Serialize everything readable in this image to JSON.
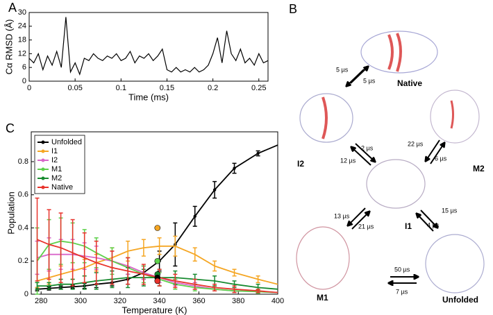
{
  "panel_labels": [
    "A",
    "B",
    "C"
  ],
  "chart_data": [
    {
      "type": "line",
      "xlabel": "Time (ms)",
      "ylabel": "Cα RMSD (Å)",
      "color": "#000000",
      "x": [
        0,
        0.005,
        0.01,
        0.015,
        0.02,
        0.025,
        0.03,
        0.035,
        0.04,
        0.045,
        0.05,
        0.055,
        0.06,
        0.065,
        0.07,
        0.075,
        0.08,
        0.085,
        0.09,
        0.095,
        0.1,
        0.105,
        0.11,
        0.115,
        0.12,
        0.125,
        0.13,
        0.135,
        0.14,
        0.145,
        0.15,
        0.155,
        0.16,
        0.165,
        0.17,
        0.175,
        0.18,
        0.185,
        0.19,
        0.195,
        0.2,
        0.205,
        0.21,
        0.215,
        0.22,
        0.225,
        0.23,
        0.235,
        0.24,
        0.245,
        0.25,
        0.255,
        0.26
      ],
      "values": [
        10,
        8,
        12,
        5,
        11,
        7,
        13,
        6,
        28,
        4,
        8,
        3,
        10,
        9,
        12,
        10,
        9,
        11,
        10,
        12,
        9,
        10,
        13,
        8,
        11,
        10,
        12,
        9,
        11,
        14,
        5,
        4,
        6,
        4,
        5,
        4,
        6,
        4,
        5,
        7,
        12,
        19,
        8,
        22,
        12,
        9,
        14,
        8,
        10,
        7,
        12,
        8,
        9
      ],
      "xlim": [
        0,
        0.26
      ],
      "xticks": [
        0,
        0.05,
        0.1,
        0.15,
        0.2,
        0.25
      ],
      "ylim": [
        0,
        30
      ],
      "yticks": [
        0,
        6,
        12,
        18,
        24,
        30
      ]
    },
    {
      "type": "errorline",
      "xlabel": "Temperature (K)",
      "ylabel": "Population",
      "x": [
        278,
        284,
        290,
        296,
        302,
        308,
        316,
        324,
        332,
        340,
        348,
        358,
        368,
        378,
        390,
        400
      ],
      "xlim": [
        275,
        400
      ],
      "xticks": [
        280,
        300,
        320,
        340,
        360,
        380,
        400
      ],
      "ylim": [
        0,
        0.98
      ],
      "yticks": [
        0,
        0.2,
        0.4,
        0.6,
        0.8
      ],
      "legend": "upper left",
      "series": [
        {
          "name": "Unfolded",
          "color": "#000000",
          "values": [
            0.03,
            0.035,
            0.04,
            0.045,
            0.05,
            0.06,
            0.07,
            0.09,
            0.13,
            0.2,
            0.3,
            0.47,
            0.63,
            0.76,
            0.85,
            0.9
          ],
          "errors": [
            0.01,
            0.01,
            0.01,
            0.01,
            0.015,
            0.02,
            0.02,
            0.03,
            0.04,
            0.06,
            0.13,
            0.06,
            0.05,
            0.03,
            0.015,
            null
          ]
        },
        {
          "name": "I1",
          "color": "#f5a623",
          "values": [
            0.08,
            0.1,
            0.12,
            0.14,
            0.16,
            0.19,
            0.22,
            0.26,
            0.28,
            0.29,
            0.29,
            0.24,
            0.17,
            0.13,
            0.09,
            0.06
          ],
          "errors": [
            0.04,
            0.04,
            0.05,
            0.05,
            0.05,
            0.05,
            0.06,
            0.06,
            0.05,
            0.05,
            0.06,
            0.04,
            0.03,
            0.02,
            0.02,
            null
          ]
        },
        {
          "name": "I2",
          "color": "#d966c9",
          "values": [
            0.22,
            0.24,
            0.24,
            0.24,
            0.23,
            0.22,
            0.2,
            0.17,
            0.13,
            0.1,
            0.07,
            0.05,
            0.03,
            0.02,
            0.015,
            0.01
          ],
          "errors": [
            0.1,
            0.1,
            0.09,
            0.09,
            0.08,
            0.07,
            0.06,
            0.05,
            0.04,
            0.03,
            0.02,
            0.02,
            0.01,
            0.01,
            0.01,
            null
          ]
        },
        {
          "name": "M1",
          "color": "#5ed04b",
          "values": [
            0.2,
            0.3,
            0.32,
            0.31,
            0.29,
            0.25,
            0.2,
            0.16,
            0.12,
            0.09,
            0.06,
            0.04,
            0.03,
            0.02,
            0.015,
            0.01
          ],
          "errors": [
            0.2,
            0.15,
            0.14,
            0.12,
            0.1,
            0.09,
            0.08,
            0.06,
            0.05,
            0.04,
            0.03,
            0.02,
            0.01,
            0.01,
            0.01,
            null
          ]
        },
        {
          "name": "M2",
          "color": "#178a2f",
          "values": [
            0.05,
            0.05,
            0.06,
            0.06,
            0.07,
            0.08,
            0.09,
            0.1,
            0.1,
            0.1,
            0.1,
            0.09,
            0.08,
            0.06,
            0.04,
            0.03
          ],
          "errors": [
            0.02,
            0.02,
            0.03,
            0.03,
            0.04,
            0.05,
            0.05,
            0.06,
            0.05,
            0.05,
            0.04,
            0.03,
            0.03,
            0.02,
            0.02,
            null
          ]
        },
        {
          "name": "Native",
          "color": "#e8332c",
          "values": [
            0.33,
            0.3,
            0.28,
            0.25,
            0.22,
            0.19,
            0.16,
            0.14,
            0.12,
            0.1,
            0.08,
            0.06,
            0.04,
            0.03,
            0.02,
            0.01
          ],
          "errors": [
            0.25,
            0.21,
            0.21,
            0.2,
            0.15,
            0.13,
            0.1,
            0.08,
            0.06,
            0.05,
            0.04,
            0.03,
            0.02,
            0.02,
            0.01,
            null
          ]
        }
      ],
      "markers": [
        {
          "x": 339,
          "value": 0.4,
          "color": "#f5a623"
        },
        {
          "x": 339,
          "value": 0.2,
          "color": "#5ed04b"
        },
        {
          "x": 339,
          "value": 0.12,
          "color": "#178a2f"
        },
        {
          "x": 339,
          "value": 0.1,
          "color": "#000000"
        },
        {
          "x": 339,
          "value": 0.08,
          "color": "#e8332c"
        }
      ]
    }
  ],
  "diagram": {
    "states": [
      "Native",
      "I2",
      "M2",
      "I1",
      "M1",
      "Unfolded"
    ],
    "rates": [
      "5 µs",
      "5 µs",
      "2 µs",
      "12 µs",
      "22 µs",
      "6 µs",
      "13 µs",
      "21 µs",
      "15 µs",
      "4 µs",
      "50 µs",
      "7 µs"
    ]
  }
}
